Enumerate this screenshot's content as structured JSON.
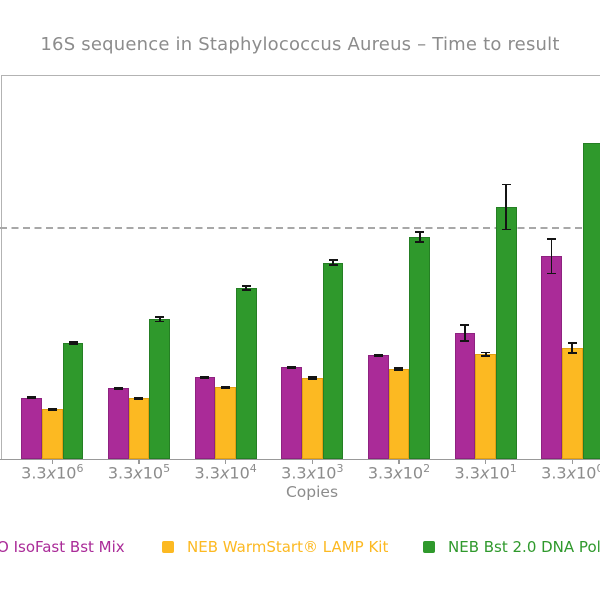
{
  "chart_data": {
    "type": "bar",
    "title": "16S sequence in Staphylococcus Aureus – Time to result",
    "xlabel": "Copies",
    "ylabel": "",
    "categories": [
      "3.3x10^6",
      "3.3x10^5",
      "3.3x10^4",
      "3.3x10^3",
      "3.3x10^2",
      "3.3x10^1",
      "3.3x10^0"
    ],
    "series": [
      {
        "key": "isofast",
        "name": "O IsoFast Bst Mix",
        "color": "#aa2b98",
        "edge": "#8e2280",
        "values": [
          15.9,
          18.3,
          21.2,
          23.8,
          26.9,
          32.7,
          52.7
        ],
        "errors": [
          0.4,
          0.4,
          0.4,
          0.4,
          0.4,
          2.3,
          4.7
        ]
      },
      {
        "key": "warmstart",
        "name": "NEB WarmStart® LAMP Kit",
        "color": "#fcb922",
        "edge": "#e2a011",
        "values": [
          12.8,
          15.7,
          18.6,
          21.0,
          23.4,
          27.2,
          28.8
        ],
        "errors": [
          0.3,
          0.4,
          0.4,
          0.5,
          0.5,
          0.7,
          1.5
        ]
      },
      {
        "key": "bst2",
        "name": "NEB Bst 2.0 DNA Pol",
        "color": "#2f992c",
        "edge": "#257f24",
        "values": [
          30.2,
          36.3,
          44.5,
          51.1,
          57.8,
          65.6,
          82.4
        ],
        "errors": [
          0.5,
          0.8,
          0.8,
          0.9,
          1.5,
          6.1,
          0
        ]
      }
    ],
    "threshold": 60,
    "threshold_style": "dashed",
    "ylim": [
      0,
      100
    ],
    "value_units": "relative time (y-axis cropped out of view)",
    "error_bars": true,
    "grid": false,
    "legend_position": "bottom",
    "legend": [
      "O IsoFast Bst Mix",
      "NEB WarmStart® LAMP Kit",
      "NEB Bst 2.0 DNA Pol"
    ]
  }
}
